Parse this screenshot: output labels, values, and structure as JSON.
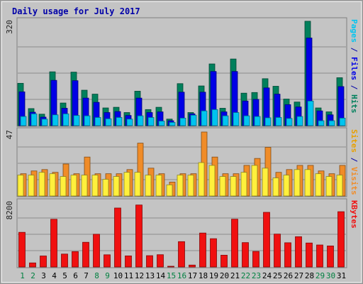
{
  "chart_data": {
    "type": "bar",
    "title": "Daily usage for July 2017",
    "x": [
      "1",
      "2",
      "3",
      "4",
      "5",
      "6",
      "7",
      "8",
      "9",
      "10",
      "11",
      "12",
      "13",
      "14",
      "15",
      "16",
      "17",
      "18",
      "19",
      "20",
      "21",
      "22",
      "23",
      "24",
      "25",
      "26",
      "27",
      "28",
      "29",
      "30",
      "31"
    ],
    "weekend_days": [
      "1",
      "2",
      "8",
      "9",
      "15",
      "16",
      "22",
      "23",
      "29",
      "30"
    ],
    "panels": [
      {
        "name": "hits",
        "ymax_label": "320",
        "ymax": 320,
        "right_label": {
          "parts": [
            "Pages",
            "Files",
            "Hits"
          ],
          "separator": " / "
        },
        "series": [
          {
            "name": "Hits",
            "color": "#00805c",
            "values": [
              129,
              52,
              35,
              164,
              69,
              163,
              108,
              96,
              54,
              56,
              40,
              105,
              49,
              56,
              20,
              128,
              40,
              121,
              188,
              53,
              203,
              99,
              101,
              143,
              120,
              81,
              72,
              318,
              54,
              42,
              146
            ]
          },
          {
            "name": "Files",
            "color": "#0000e6",
            "values": [
              103,
              41,
              26,
              138,
              53,
              137,
              84,
              71,
              40,
              43,
              31,
              84,
              40,
              42,
              15,
              102,
              36,
              102,
              165,
              42,
              165,
              75,
              80,
              115,
              96,
              64,
              57,
              267,
              45,
              33,
              119
            ]
          },
          {
            "name": "Pages",
            "color": "#00c4f0",
            "values": [
              28,
              36,
              20,
              33,
              36,
              31,
              30,
              25,
              21,
              25,
              20,
              30,
              25,
              14,
              10,
              23,
              32,
              45,
              49,
              30,
              40,
              30,
              28,
              24,
              25,
              22,
              28,
              75,
              15,
              15,
              23
            ]
          }
        ]
      },
      {
        "name": "visits",
        "ymax_label": "47",
        "ymax": 47,
        "right_label": {
          "parts": [
            "Sites",
            "Visits"
          ],
          "separator": " / "
        },
        "series": [
          {
            "name": "Visits",
            "color": "#f08c28",
            "values": [
              16,
              18,
              19,
              17,
              23,
              16,
              28,
              16,
              16,
              16,
              19,
              38,
              20,
              16,
              10,
              16,
              16,
              46,
              28,
              16,
              16,
              22,
              27,
              35,
              17,
              19,
              22,
              22,
              18,
              16,
              22
            ]
          },
          {
            "name": "Sites",
            "color": "#fff03c",
            "values": [
              15,
              15,
              17,
              16,
              14,
              15,
              15,
              15,
              12,
              14,
              17,
              17,
              15,
              15,
              8,
              15,
              15,
              24,
              22,
              14,
              14,
              17,
              22,
              20,
              13,
              15,
              19,
              19,
              16,
              14,
              15
            ]
          }
        ]
      },
      {
        "name": "kbytes",
        "ymax_label": "8200",
        "ymax": 8200,
        "right_label": {
          "parts": [
            "KBytes"
          ],
          "separator": ""
        },
        "series": [
          {
            "name": "KBytes",
            "color": "#f01010",
            "values": [
              4350,
              510,
              1380,
              5990,
              1620,
              1930,
              3100,
              4110,
              1530,
              7400,
              1390,
              7780,
              1420,
              1540,
              60,
              3180,
              240,
              4260,
              3550,
              1480,
              6000,
              3060,
              1950,
              6860,
              4130,
              3040,
              3800,
              3010,
              2760,
              2640,
              6940
            ]
          }
        ]
      }
    ]
  }
}
